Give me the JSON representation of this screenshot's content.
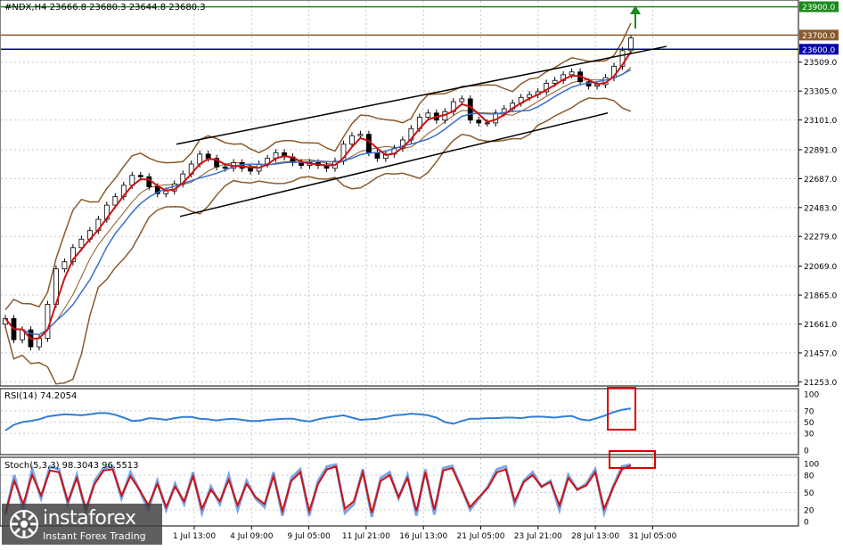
{
  "chart_data": [
    {
      "type": "candlestick",
      "title": "#NDX,H4  23666.8 23680.3 23644.8 23680.3",
      "x_ticks": [
        "1 Jul 13:00",
        "4 Jul 09:00",
        "9 Jul 05:00",
        "11 Jul 21:00",
        "16 Jul 13:00",
        "21 Jul 05:00",
        "23 Jul 21:00",
        "28 Jul 13:00",
        "31 Jul 05:00"
      ],
      "y_ticks": [
        23509.0,
        23305.0,
        23101.0,
        22891.0,
        22687.0,
        22483.0,
        22279.0,
        22069.0,
        21865.0,
        21661.0,
        21457.0,
        21253.0
      ],
      "ylim": [
        21230,
        23935
      ],
      "price_levels": [
        {
          "value": 23900.0,
          "label": "23900.0",
          "color": "#1a8c1a"
        },
        {
          "value": 23700.0,
          "label": "23700.0",
          "color": "#8b5a2b"
        },
        {
          "value": 23600.0,
          "label": "23600.0",
          "color": "#0000aa"
        }
      ],
      "channel": {
        "upper": [
          {
            "x": 0,
            "y": 22930
          },
          {
            "x": 1,
            "y": 23620
          }
        ],
        "lower": [
          {
            "x": 0,
            "y": 22420
          },
          {
            "x": 1,
            "y": 23150
          }
        ]
      },
      "close": [
        21700,
        21550,
        21620,
        21500,
        21560,
        21800,
        22050,
        22100,
        22200,
        22260,
        22320,
        22400,
        22500,
        22560,
        22640,
        22710,
        22700,
        22630,
        22580,
        22600,
        22650,
        22720,
        22790,
        22860,
        22830,
        22770,
        22760,
        22800,
        22760,
        22740,
        22790,
        22830,
        22870,
        22840,
        22800,
        22780,
        22800,
        22780,
        22760,
        22810,
        22930,
        22990,
        23000,
        22870,
        22830,
        22860,
        22900,
        22960,
        23040,
        23120,
        23150,
        23100,
        23160,
        23230,
        23250,
        23100,
        23080,
        23080,
        23150,
        23180,
        23220,
        23260,
        23280,
        23300,
        23360,
        23380,
        23420,
        23440,
        23370,
        23340,
        23350,
        23400,
        23480,
        23590,
        23680
      ],
      "overlays": [
        "Bollinger Bands",
        "moving averages (red, blue)"
      ]
    },
    {
      "type": "line",
      "title": "RSI(14) 74.2054",
      "y_ticks": [
        100,
        70,
        50,
        30,
        0
      ],
      "ylim": [
        0,
        100
      ],
      "series": [
        {
          "name": "RSI(14)",
          "values": [
            35,
            45,
            50,
            52,
            55,
            60,
            62,
            64,
            63,
            62,
            64,
            66,
            66,
            63,
            58,
            52,
            53,
            57,
            56,
            54,
            57,
            59,
            59,
            56,
            55,
            53,
            55,
            56,
            54,
            52,
            52,
            54,
            55,
            56,
            56,
            53,
            51,
            55,
            58,
            60,
            62,
            58,
            54,
            55,
            56,
            59,
            62,
            63,
            65,
            64,
            62,
            58,
            50,
            47,
            52,
            56,
            56,
            57,
            57,
            58,
            58,
            57,
            59,
            60,
            59,
            58,
            60,
            61,
            55,
            53,
            57,
            62,
            68,
            72,
            74.2054
          ]
        }
      ]
    },
    {
      "type": "line",
      "title": "Stoch(5,3,3) 98.3043 96.5513",
      "y_ticks": [
        100,
        80,
        50,
        20,
        0
      ],
      "ylim": [
        0,
        100
      ],
      "series": [
        {
          "name": "%K",
          "values": [
            10,
            80,
            20,
            90,
            40,
            95,
            90,
            30,
            80,
            15,
            70,
            92,
            95,
            40,
            85,
            55,
            20,
            70,
            20,
            65,
            30,
            85,
            15,
            60,
            30,
            80,
            20,
            70,
            40,
            25,
            85,
            10,
            75,
            90,
            10,
            70,
            95,
            98,
            15,
            30,
            90,
            8,
            75,
            85,
            40,
            80,
            10,
            90,
            12,
            92,
            96,
            60,
            20,
            40,
            60,
            90,
            95,
            30,
            70,
            85,
            60,
            70,
            20,
            80,
            55,
            65,
            90,
            15,
            60,
            95,
            98.3043
          ]
        },
        {
          "name": "%D",
          "values": [
            15,
            70,
            30,
            80,
            45,
            88,
            85,
            35,
            75,
            22,
            65,
            88,
            90,
            45,
            78,
            55,
            28,
            65,
            25,
            60,
            35,
            78,
            22,
            55,
            35,
            72,
            28,
            65,
            42,
            30,
            78,
            18,
            70,
            85,
            18,
            65,
            90,
            95,
            22,
            35,
            85,
            15,
            70,
            80,
            42,
            75,
            18,
            85,
            20,
            88,
            92,
            58,
            25,
            42,
            58,
            85,
            90,
            35,
            68,
            80,
            60,
            68,
            28,
            75,
            55,
            62,
            85,
            22,
            58,
            90,
            96.5513
          ]
        }
      ]
    }
  ],
  "watermark": {
    "name": "instaforex",
    "subtitle": "Instant Forex Trading"
  }
}
